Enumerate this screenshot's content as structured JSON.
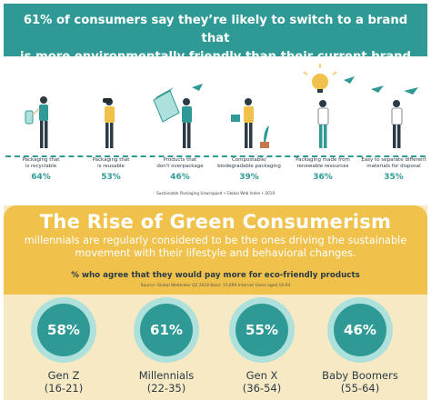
{
  "header": {
    "line1": "61% of consumers say they’re likely to switch to a brand that",
    "line2": "is more environmentally friendly than their current brand"
  },
  "stats": [
    {
      "label_line1": "Packaging that",
      "label_line2": "is recyclable",
      "value": "64%"
    },
    {
      "label_line1": "Packaging that",
      "label_line2": "is reusable",
      "value": "53%"
    },
    {
      "label_line1": "Products that",
      "label_line2": "don't overpackage",
      "value": "46%"
    },
    {
      "label_line1": "Compostable/",
      "label_line2": "biodegradable packaging",
      "value": "39%"
    },
    {
      "label_line1": "Packaging made from",
      "label_line2": "renewable resources",
      "value": "36%"
    },
    {
      "label_line1": "Easy to separate different",
      "label_line2": "materials for disposal",
      "value": "35%"
    }
  ],
  "stats_source": "Sustainable Packaging Unwrapped • Global Web Index • 2019",
  "panel": {
    "title": "The Rise of Green Consumerism",
    "subtitle_line1": "millennials are regularly considered to be the ones driving the sustainable",
    "subtitle_line2": "movement with their lifestyle and behavioral changes.",
    "question": "% who agree that they would pay more for eco-friendly products",
    "source": "Source: Global WebIndex Q2 2018   Base: 15,699 Internet Users aged 16-64"
  },
  "generations": [
    {
      "value": "58%",
      "name": "Gen Z",
      "range": "(16-21)"
    },
    {
      "value": "61%",
      "name": "Millennials",
      "range": "(22-35)"
    },
    {
      "value": "55%",
      "name": "Gen X",
      "range": "(36-54)"
    },
    {
      "value": "46%",
      "name": "Baby Boomers",
      "range": "(55-64)"
    }
  ],
  "colors": {
    "teal": "#2f9a95",
    "yellow": "#f0c24c",
    "cream": "#f7e9c3",
    "light_teal": "#aee0dc"
  }
}
